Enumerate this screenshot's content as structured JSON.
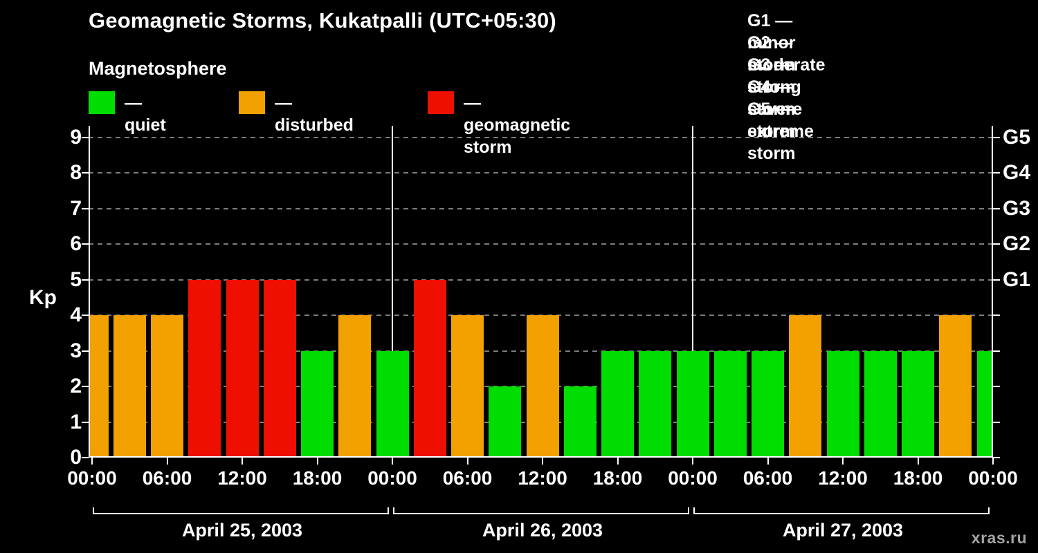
{
  "page": {
    "background": "#000000",
    "watermark": "xras.ru"
  },
  "title": "Geomagnetic Storms, Kukatpalli (UTC+05:30)",
  "subtitle": "Magnetosphere",
  "legend": {
    "items": [
      {
        "state": "quiet",
        "color": "#00dd00",
        "label": "— quiet"
      },
      {
        "state": "disturbed",
        "color": "#f2a100",
        "label": "— disturbed"
      },
      {
        "state": "storm",
        "color": "#ee0f00",
        "label": "— geomagnetic storm"
      }
    ]
  },
  "storm_scale": [
    "G1 — minor storm",
    "G2 — moderate storm",
    "G3 — strong storm",
    "G4 — severe storm",
    "G5 — extreme storm"
  ],
  "chart_data": {
    "type": "bar",
    "title": "Geomagnetic Storms, Kukatpalli (UTC+05:30)",
    "ylabel": "Kp",
    "ylim": [
      0,
      9.3
    ],
    "yticks": [
      0,
      1,
      2,
      3,
      4,
      5,
      6,
      7,
      8,
      9
    ],
    "grid": "dashed-horizontal",
    "right_axis_labels": [
      {
        "kp": 9,
        "label": "G5"
      },
      {
        "kp": 8,
        "label": "G4"
      },
      {
        "kp": 7,
        "label": "G3"
      },
      {
        "kp": 6,
        "label": "G2"
      },
      {
        "kp": 5,
        "label": "G1"
      }
    ],
    "x_tick_labels": [
      "00:00",
      "06:00",
      "12:00",
      "18:00",
      "00:00",
      "06:00",
      "12:00",
      "18:00",
      "00:00",
      "06:00",
      "12:00",
      "18:00",
      "00:00"
    ],
    "interval_hours": 3,
    "days": [
      {
        "label": "April 25, 2003",
        "kp": [
          4,
          4,
          4,
          5,
          5,
          5,
          3,
          4
        ]
      },
      {
        "label": "April 26, 2003",
        "kp": [
          3,
          5,
          4,
          2,
          4,
          2,
          3,
          3
        ]
      },
      {
        "label": "April 27, 2003",
        "kp": [
          3,
          3,
          3,
          4,
          3,
          3,
          3,
          4
        ]
      }
    ],
    "next_day_partial_kp": 3,
    "thresholds": {
      "disturbed": 4,
      "storm": 5
    },
    "colors": {
      "quiet": "#00dd00",
      "disturbed": "#f2a100",
      "storm": "#ee0f00"
    }
  }
}
